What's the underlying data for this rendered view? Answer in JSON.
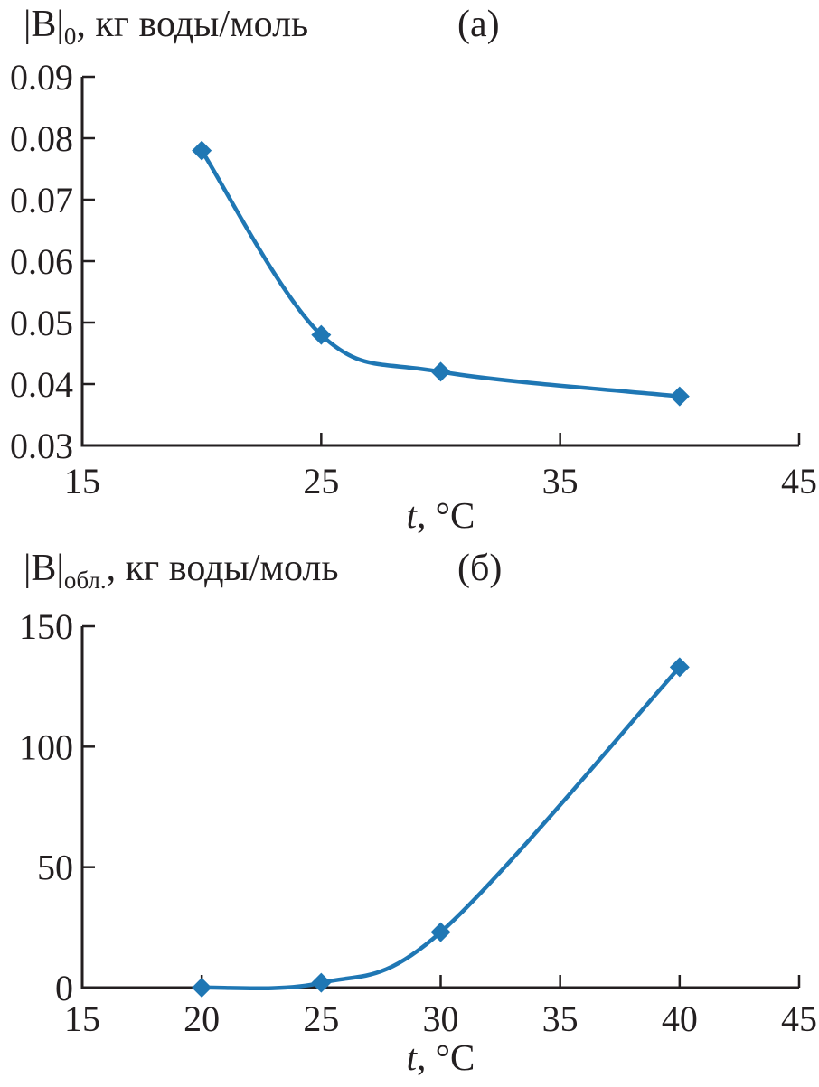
{
  "figure": {
    "panels": [
      {
        "panel_label": "(а)",
        "title": {
          "bar_term": "|B|",
          "subscript": "0",
          "rest": ", кг воды/моль"
        }
      },
      {
        "panel_label": "(б)",
        "title": {
          "bar_term": "|B|",
          "subscript": "обл.",
          "rest": ", кг воды/моль"
        }
      }
    ]
  },
  "chart_data": [
    {
      "type": "line",
      "title": "|B|0, кг воды/моль",
      "panel": "(а)",
      "ylabel": "|B|0, кг воды/моль",
      "xlabel": "t, °C",
      "xlabel_italic_part": "t",
      "xlabel_rest": ", °C",
      "x": [
        20,
        25,
        30,
        40
      ],
      "y": [
        0.078,
        0.048,
        0.042,
        0.038
      ],
      "xlim": [
        15,
        45
      ],
      "ylim": [
        0.03,
        0.09
      ],
      "yticks": {
        "values": [
          0.09,
          0.08,
          0.07,
          0.06,
          0.05,
          0.04,
          0.03
        ],
        "labels": [
          "0.09",
          "0.08",
          "0.07",
          "0.06",
          "0.05",
          "0.04",
          "0.03"
        ]
      },
      "xticks": {
        "mark_values": [
          25,
          35,
          45
        ],
        "label_values": [
          15,
          25,
          35,
          45
        ],
        "labels": [
          "15",
          "25",
          "35",
          "45"
        ]
      },
      "grid": false,
      "legend": null,
      "marker": "diamond",
      "line_color": "#1f77b4",
      "axis_color": "#231f20"
    },
    {
      "type": "line",
      "title": "|B|обл., кг воды/моль",
      "panel": "(б)",
      "ylabel": "|B|обл., кг воды/моль",
      "xlabel": "t, °C",
      "xlabel_italic_part": "t",
      "xlabel_rest": ", °C",
      "x": [
        20,
        25,
        30,
        40
      ],
      "y": [
        0,
        2,
        23,
        133
      ],
      "xlim": [
        15,
        45
      ],
      "ylim": [
        0,
        150
      ],
      "yticks": {
        "values": [
          150,
          100,
          50,
          0
        ],
        "labels": [
          "150",
          "100",
          "50",
          "0"
        ]
      },
      "xticks": {
        "mark_values": [
          20,
          25,
          30,
          35,
          40,
          45
        ],
        "label_values": [
          15,
          20,
          25,
          30,
          35,
          40,
          45
        ],
        "labels": [
          "15",
          "20",
          "25",
          "30",
          "35",
          "40",
          "45"
        ]
      },
      "grid": false,
      "legend": null,
      "marker": "diamond",
      "line_color": "#1f77b4",
      "axis_color": "#231f20"
    }
  ]
}
